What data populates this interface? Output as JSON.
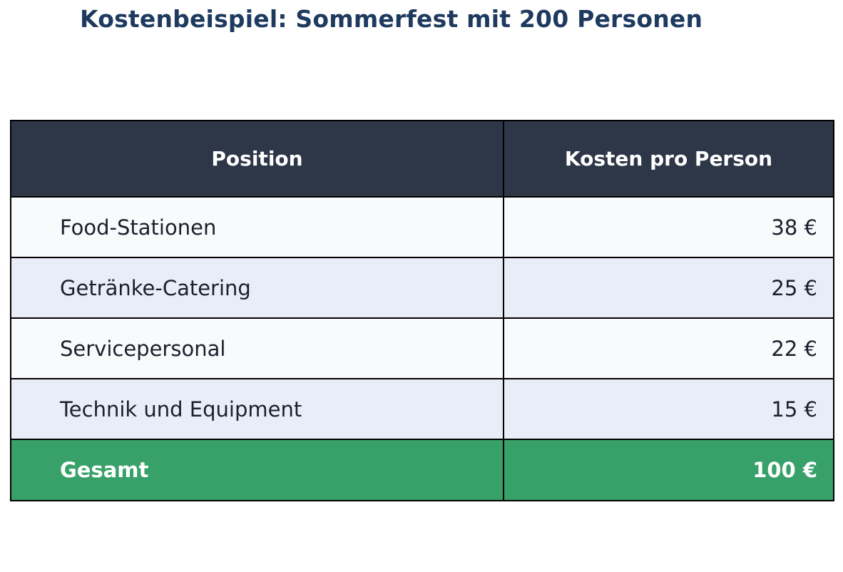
{
  "title": {
    "text": "Kostenbeispiel: Sommerfest mit 200 Personen"
  },
  "table": {
    "headers": {
      "position": "Position",
      "cost": "Kosten pro Person"
    },
    "rows": [
      {
        "position": "Food-Stationen",
        "cost": "38 €"
      },
      {
        "position": "Getränke-Catering",
        "cost": "25 €"
      },
      {
        "position": "Servicepersonal",
        "cost": "22 €"
      },
      {
        "position": "Technik und Equipment",
        "cost": "15 €"
      }
    ],
    "total": {
      "label": "Gesamt",
      "value": "100 €"
    }
  },
  "colors": {
    "title_text": "#1e3a5f",
    "header_bg": "#2d3748",
    "header_text": "#ffffff",
    "row_light_bg": "#f8fafc",
    "row_shaded_bg": "#e9edf7",
    "row_text": "#1a202c",
    "total_bg": "#38a169",
    "total_text": "#ffffff",
    "border": "#000000",
    "page_bg": "#ffffff"
  },
  "chart_data": {
    "type": "table",
    "title": "Kostenbeispiel: Sommerfest mit 200 Personen",
    "columns": [
      "Position",
      "Kosten pro Person"
    ],
    "rows": [
      [
        "Food-Stationen",
        "38 €"
      ],
      [
        "Getränke-Catering",
        "25 €"
      ],
      [
        "Servicepersonal",
        "22 €"
      ],
      [
        "Technik und Equipment",
        "15 €"
      ],
      [
        "Gesamt",
        "100 €"
      ]
    ],
    "values_eur_per_person": {
      "Food-Stationen": 38,
      "Getränke-Catering": 25,
      "Servicepersonal": 22,
      "Technik und Equipment": 15,
      "Gesamt": 100
    },
    "layout_hints": {
      "header_style": "dark-navy centered bold",
      "body_rows": "alternating light / pale-blue, labels left, values right-aligned",
      "total_row": "green highlight, bold white",
      "grid": "black 2px full grid borders"
    }
  }
}
